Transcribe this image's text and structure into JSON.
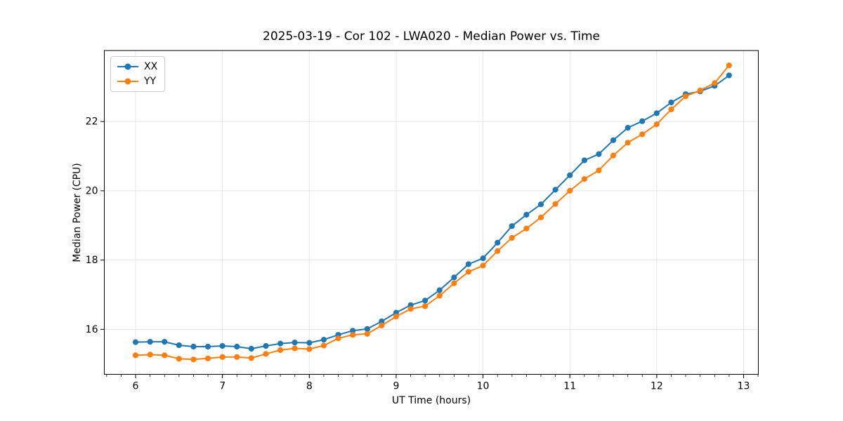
{
  "chart_data": {
    "type": "line",
    "title": "2025-03-19 - Cor 102 - LWA020 - Median Power vs. Time",
    "xlabel": "UT Time (hours)",
    "ylabel": "Median Power (CPU)",
    "xlim": [
      5.64,
      13.17
    ],
    "ylim": [
      14.7,
      24.05
    ],
    "x_ticks": [
      6,
      7,
      8,
      9,
      10,
      11,
      12,
      13
    ],
    "y_ticks": [
      16,
      18,
      20,
      22
    ],
    "x_minor_step": 0.16667,
    "grid": true,
    "grid_color": "#e4e4e4",
    "legend_position": "upper left",
    "x": [
      6.0,
      6.167,
      6.333,
      6.5,
      6.667,
      6.833,
      7.0,
      7.167,
      7.333,
      7.5,
      7.667,
      7.833,
      8.0,
      8.167,
      8.333,
      8.5,
      8.667,
      8.833,
      9.0,
      9.167,
      9.333,
      9.5,
      9.667,
      9.833,
      10.0,
      10.167,
      10.333,
      10.5,
      10.667,
      10.833,
      11.0,
      11.167,
      11.333,
      11.5,
      11.667,
      11.833,
      12.0,
      12.167,
      12.333,
      12.5,
      12.667,
      12.833
    ],
    "series": [
      {
        "name": "XX",
        "color": "#1f77b4",
        "values": [
          15.63,
          15.64,
          15.64,
          15.54,
          15.5,
          15.5,
          15.52,
          15.5,
          15.44,
          15.52,
          15.59,
          15.62,
          15.61,
          15.7,
          15.84,
          15.96,
          16.01,
          16.23,
          16.48,
          16.7,
          16.83,
          17.13,
          17.5,
          17.88,
          18.05,
          18.5,
          18.98,
          19.31,
          19.61,
          20.03,
          20.45,
          20.88,
          21.06,
          21.46,
          21.82,
          22.01,
          22.24,
          22.55,
          22.79,
          22.87,
          23.03,
          23.33
        ]
      },
      {
        "name": "YY",
        "color": "#ff7f0e",
        "values": [
          15.25,
          15.27,
          15.25,
          15.15,
          15.13,
          15.16,
          15.2,
          15.2,
          15.17,
          15.29,
          15.4,
          15.45,
          15.43,
          15.53,
          15.74,
          15.84,
          15.87,
          16.11,
          16.37,
          16.59,
          16.67,
          16.97,
          17.33,
          17.66,
          17.84,
          18.26,
          18.64,
          18.91,
          19.23,
          19.62,
          20.0,
          20.34,
          20.59,
          21.02,
          21.39,
          21.63,
          21.92,
          22.35,
          22.73,
          22.9,
          23.11,
          23.62
        ]
      }
    ]
  },
  "colors": {
    "background": "#ffffff",
    "axis": "#000000",
    "text": "#000000",
    "grid": "#e4e4e4",
    "series_xx": "#1f77b4",
    "series_yy": "#ff7f0e"
  }
}
